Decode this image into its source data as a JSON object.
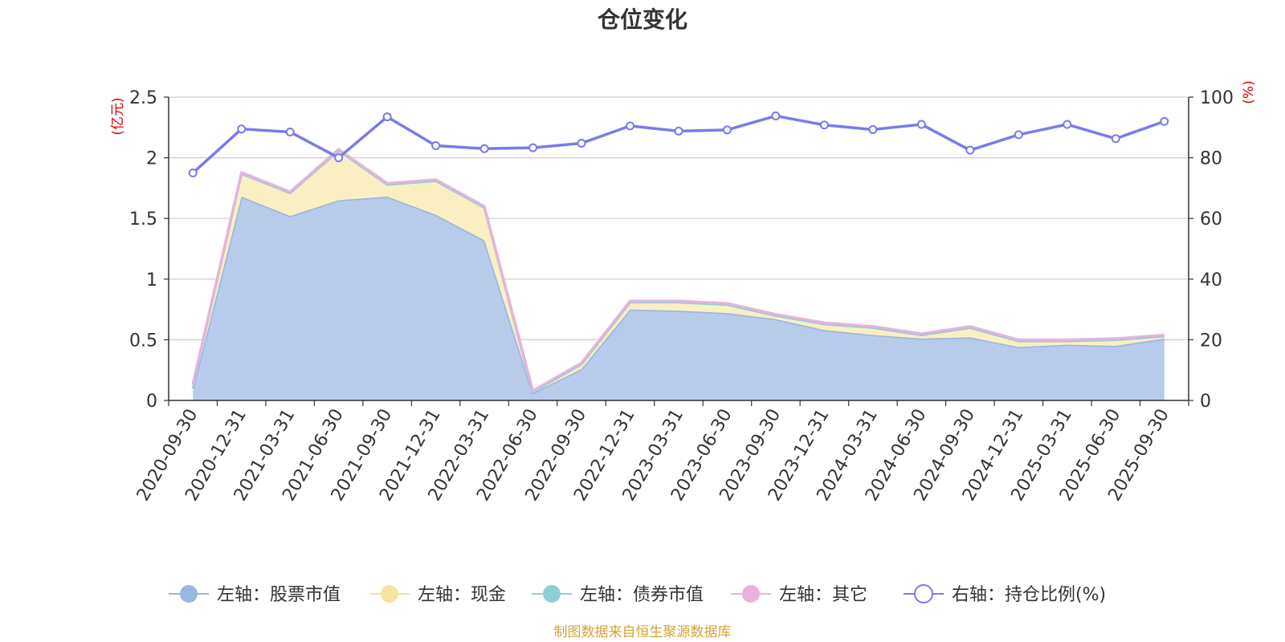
{
  "chart_data": {
    "type": "area",
    "title": "仓位变化",
    "left_axis_unit": "(亿元)",
    "right_axis_unit": "(%)",
    "ylim_left": [
      0,
      2.5
    ],
    "yticks_left": [
      "0",
      "0.5",
      "1",
      "1.5",
      "2",
      "2.5"
    ],
    "ylim_right": [
      0,
      100
    ],
    "yticks_right": [
      "0",
      "20",
      "40",
      "60",
      "80",
      "100"
    ],
    "categories": [
      "2020-09-30",
      "2020-12-31",
      "2021-03-31",
      "2021-06-30",
      "2021-09-30",
      "2021-12-31",
      "2022-03-31",
      "2022-06-30",
      "2022-09-30",
      "2022-12-31",
      "2023-03-31",
      "2023-06-30",
      "2023-09-30",
      "2023-12-31",
      "2024-03-31",
      "2024-06-30",
      "2024-09-30",
      "2024-12-31",
      "2025-03-31",
      "2025-06-30",
      "2025-09-30"
    ],
    "series": [
      {
        "name": "左轴：股票市值",
        "axis": "left",
        "color": "#9ab6e0",
        "fill": "#b8cbea",
        "values": [
          0.1,
          1.68,
          1.52,
          1.65,
          1.68,
          1.53,
          1.32,
          0.06,
          0.26,
          0.75,
          0.74,
          0.72,
          0.67,
          0.58,
          0.54,
          0.51,
          0.52,
          0.44,
          0.46,
          0.45,
          0.51
        ]
      },
      {
        "name": "左轴：现金",
        "axis": "left",
        "color": "#f5e4a0",
        "fill": "#faeec3",
        "values": [
          0.03,
          0.19,
          0.19,
          0.41,
          0.1,
          0.28,
          0.27,
          0.01,
          0.04,
          0.06,
          0.07,
          0.07,
          0.03,
          0.05,
          0.06,
          0.03,
          0.08,
          0.05,
          0.03,
          0.05,
          0.02
        ]
      },
      {
        "name": "左轴：债券市值",
        "axis": "left",
        "color": "#8ecfd6",
        "fill": "#8ecfd6",
        "values": [
          0,
          0,
          0,
          0,
          0,
          0,
          0,
          0,
          0,
          0,
          0,
          0,
          0,
          0,
          0,
          0,
          0,
          0,
          0,
          0,
          0
        ]
      },
      {
        "name": "左轴：其它",
        "axis": "left",
        "color": "#e6b3dc",
        "fill": "#e6b3dc",
        "values": [
          0.01,
          0.01,
          0.01,
          0.01,
          0.01,
          0.01,
          0.01,
          0.01,
          0.01,
          0.01,
          0.01,
          0.01,
          0.01,
          0.01,
          0.01,
          0.01,
          0.01,
          0.01,
          0.01,
          0.01,
          0.01
        ]
      },
      {
        "name": "右轴：持仓比例(%)",
        "axis": "right",
        "color": "#7a7aec",
        "values": [
          75,
          89.5,
          88.5,
          80,
          93.5,
          84,
          83,
          83.3,
          84.8,
          90.5,
          88.8,
          89.2,
          93.8,
          90.8,
          89.3,
          91,
          82.5,
          87.6,
          91,
          86.3,
          92
        ]
      }
    ],
    "legend_position": "bottom",
    "source_note": "制图数据来自恒生聚源数据库",
    "colors": {
      "title": "#333333",
      "axis_text": "#333333",
      "unit": "#e00000",
      "grid": "#cccccc",
      "source": "#d4a338"
    }
  }
}
